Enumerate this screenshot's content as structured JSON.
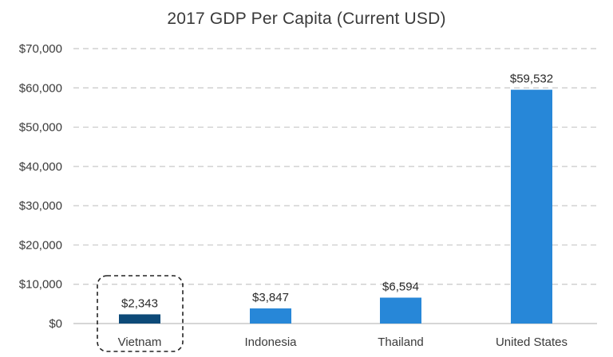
{
  "chart_data": {
    "type": "bar",
    "title": "2017 GDP Per Capita (Current USD)",
    "xlabel": "",
    "ylabel": "",
    "categories": [
      "Vietnam",
      "Indonesia",
      "Thailand",
      "United States"
    ],
    "values": [
      2343,
      3847,
      6594,
      59532
    ],
    "data_labels": [
      "$2,343",
      "$3,847",
      "$6,594",
      "$59,532"
    ],
    "ylim": [
      0,
      70000
    ],
    "yticks": [
      0,
      10000,
      20000,
      30000,
      40000,
      50000,
      60000,
      70000
    ],
    "ytick_labels": [
      "$0",
      "$10,000",
      "$20,000",
      "$30,000",
      "$40,000",
      "$50,000",
      "$60,000",
      "$70,000"
    ],
    "grid": true,
    "highlighted_category": "Vietnam",
    "colors": {
      "default_bar": "#2787d8",
      "highlight_bar": "#0d4a78",
      "grid": "#c8c8c8",
      "axis": "#bdbdbd",
      "highlight_box": "#222222"
    }
  }
}
